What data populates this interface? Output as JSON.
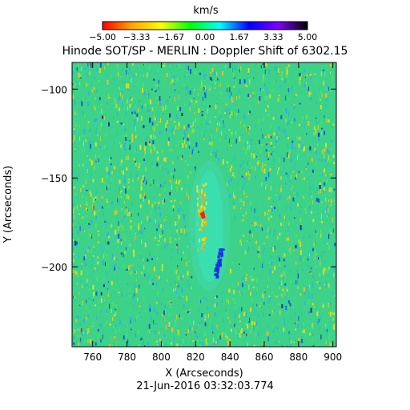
{
  "title": "Hinode SOT/SP - MERLIN : Doppler Shift of 6302.15",
  "colorbar": {
    "unit_label": "km/s",
    "tick_labels": [
      "−5.00",
      "−3.33",
      "−1.67",
      "0.00",
      "1.67",
      "3.33",
      "5.00"
    ],
    "range": [
      -5.0,
      5.0
    ],
    "colormap": [
      "#ff0000",
      "#ffa500",
      "#ffff00",
      "#00ff00",
      "#00ffff",
      "#0000ff",
      "#8000ff",
      "#000000"
    ]
  },
  "axes": {
    "x_label": "X (Arcseconds)",
    "y_label": "Y (Arcseconds)",
    "x_range": [
      748,
      902
    ],
    "y_range": [
      -245,
      -85
    ],
    "x_ticks": [
      760,
      780,
      800,
      820,
      840,
      860,
      880,
      900
    ],
    "y_ticks": [
      -100,
      -150,
      -200
    ],
    "x_tick_labels": [
      "760",
      "780",
      "800",
      "820",
      "840",
      "860",
      "880",
      "900"
    ],
    "y_tick_labels": [
      "−100",
      "−150",
      "−200"
    ]
  },
  "timestamp": "21-Jun-2016 03:32:03.774",
  "image": {
    "background_color": "#3cd28a",
    "feature": {
      "center_x": 828,
      "center_y": -177,
      "half_width_x": 10,
      "half_height_y": 35,
      "redshift_region_color": "#ff2000",
      "blueshift_region_color": "#1830e8"
    }
  }
}
